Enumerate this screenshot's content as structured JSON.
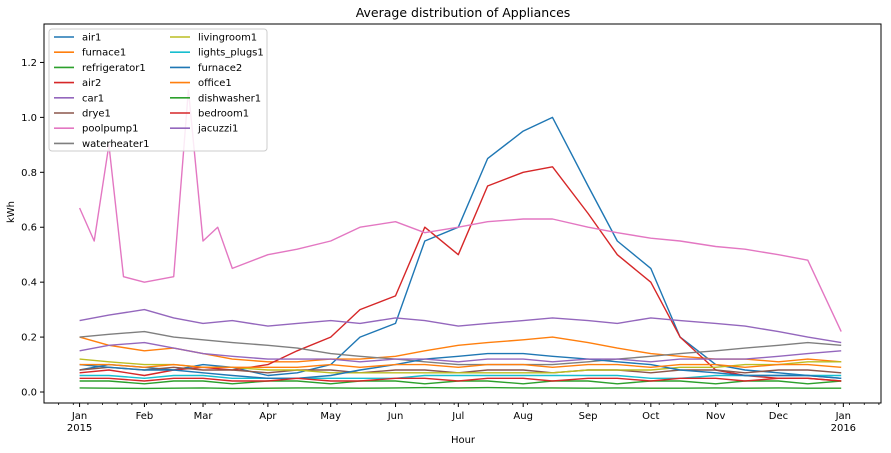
{
  "chart_data": {
    "type": "line",
    "title": "Average distribution of Appliances",
    "xlabel": "Hour",
    "ylabel": "kWh",
    "ylim": [
      -0.04,
      1.34
    ],
    "xlim": [
      "2014-12-15",
      "2016-01-19"
    ],
    "grid": false,
    "legend": "top-left",
    "yticks": [
      "0.0",
      "0.2",
      "0.4",
      "0.6",
      "0.8",
      "1.0",
      "1.2"
    ],
    "xticks": [
      {
        "date": "2015-01-01",
        "label": "Jan",
        "sub": "2015"
      },
      {
        "date": "2015-02-01",
        "label": "Feb",
        "sub": ""
      },
      {
        "date": "2015-03-01",
        "label": "Mar",
        "sub": ""
      },
      {
        "date": "2015-04-01",
        "label": "Apr",
        "sub": ""
      },
      {
        "date": "2015-05-01",
        "label": "May",
        "sub": ""
      },
      {
        "date": "2015-06-01",
        "label": "Jun",
        "sub": ""
      },
      {
        "date": "2015-07-01",
        "label": "Jul",
        "sub": ""
      },
      {
        "date": "2015-08-01",
        "label": "Aug",
        "sub": ""
      },
      {
        "date": "2015-09-01",
        "label": "Sep",
        "sub": ""
      },
      {
        "date": "2015-10-01",
        "label": "Oct",
        "sub": ""
      },
      {
        "date": "2015-11-01",
        "label": "Nov",
        "sub": ""
      },
      {
        "date": "2015-12-01",
        "label": "Dec",
        "sub": ""
      },
      {
        "date": "2016-01-01",
        "label": "Jan",
        "sub": "2016"
      }
    ],
    "series": [
      {
        "name": "air1",
        "color": "#1f77b4",
        "x": [
          "2015-01-01",
          "2015-01-15",
          "2015-02-01",
          "2015-02-15",
          "2015-03-01",
          "2015-03-15",
          "2015-04-01",
          "2015-04-15",
          "2015-05-01",
          "2015-05-15",
          "2015-06-01",
          "2015-06-15",
          "2015-07-01",
          "2015-07-15",
          "2015-08-01",
          "2015-08-15",
          "2015-09-01",
          "2015-09-15",
          "2015-10-01",
          "2015-10-15",
          "2015-11-01",
          "2015-11-15",
          "2015-12-01",
          "2015-12-15",
          "2015-12-31"
        ],
        "values": [
          0.08,
          0.1,
          0.09,
          0.08,
          0.1,
          0.09,
          0.06,
          0.07,
          0.1,
          0.2,
          0.25,
          0.55,
          0.6,
          0.85,
          0.95,
          1.0,
          0.75,
          0.55,
          0.45,
          0.2,
          0.1,
          0.08,
          0.07,
          0.06,
          0.05
        ]
      },
      {
        "name": "furnace1",
        "color": "#ff7f0e",
        "x": [
          "2015-01-01",
          "2015-01-15",
          "2015-02-01",
          "2015-02-15",
          "2015-03-01",
          "2015-03-15",
          "2015-04-01",
          "2015-04-15",
          "2015-05-01",
          "2015-05-15",
          "2015-06-01",
          "2015-06-15",
          "2015-07-01",
          "2015-07-15",
          "2015-08-01",
          "2015-08-15",
          "2015-09-01",
          "2015-09-15",
          "2015-10-01",
          "2015-10-15",
          "2015-11-01",
          "2015-11-15",
          "2015-12-01",
          "2015-12-15",
          "2015-12-31"
        ],
        "values": [
          0.2,
          0.17,
          0.15,
          0.16,
          0.14,
          0.12,
          0.11,
          0.11,
          0.12,
          0.12,
          0.13,
          0.15,
          0.17,
          0.18,
          0.19,
          0.2,
          0.18,
          0.16,
          0.14,
          0.13,
          0.12,
          0.12,
          0.11,
          0.12,
          0.11
        ]
      },
      {
        "name": "refrigerator1",
        "color": "#2ca02c",
        "x": [
          "2015-01-01",
          "2015-01-15",
          "2015-02-01",
          "2015-02-15",
          "2015-03-01",
          "2015-03-15",
          "2015-04-01",
          "2015-04-15",
          "2015-05-01",
          "2015-05-15",
          "2015-06-01",
          "2015-06-15",
          "2015-07-01",
          "2015-07-15",
          "2015-08-01",
          "2015-08-15",
          "2015-09-01",
          "2015-09-15",
          "2015-10-01",
          "2015-10-15",
          "2015-11-01",
          "2015-11-15",
          "2015-12-01",
          "2015-12-15",
          "2015-12-31"
        ],
        "values": [
          0.015,
          0.014,
          0.013,
          0.014,
          0.015,
          0.013,
          0.014,
          0.015,
          0.015,
          0.014,
          0.015,
          0.016,
          0.015,
          0.016,
          0.015,
          0.015,
          0.014,
          0.015,
          0.014,
          0.014,
          0.015,
          0.014,
          0.015,
          0.014,
          0.014
        ]
      },
      {
        "name": "air2",
        "color": "#d62728",
        "x": [
          "2015-01-01",
          "2015-01-15",
          "2015-02-01",
          "2015-02-15",
          "2015-03-01",
          "2015-03-15",
          "2015-04-01",
          "2015-04-15",
          "2015-05-01",
          "2015-05-15",
          "2015-06-01",
          "2015-06-15",
          "2015-07-01",
          "2015-07-15",
          "2015-08-01",
          "2015-08-15",
          "2015-09-01",
          "2015-09-15",
          "2015-10-01",
          "2015-10-15",
          "2015-11-01",
          "2015-11-15",
          "2015-12-01",
          "2015-12-15",
          "2015-12-31"
        ],
        "values": [
          0.07,
          0.08,
          0.06,
          0.08,
          0.09,
          0.08,
          0.1,
          0.15,
          0.2,
          0.3,
          0.35,
          0.6,
          0.5,
          0.75,
          0.8,
          0.82,
          0.65,
          0.5,
          0.4,
          0.2,
          0.08,
          0.06,
          0.05,
          0.05,
          0.04
        ]
      },
      {
        "name": "car1",
        "color": "#9467bd",
        "x": [
          "2015-01-01",
          "2015-01-15",
          "2015-02-01",
          "2015-02-15",
          "2015-03-01",
          "2015-03-15",
          "2015-04-01",
          "2015-04-15",
          "2015-05-01",
          "2015-05-15",
          "2015-06-01",
          "2015-06-15",
          "2015-07-01",
          "2015-07-15",
          "2015-08-01",
          "2015-08-15",
          "2015-09-01",
          "2015-09-15",
          "2015-10-01",
          "2015-10-15",
          "2015-11-01",
          "2015-11-15",
          "2015-12-01",
          "2015-12-15",
          "2015-12-31"
        ],
        "values": [
          0.26,
          0.28,
          0.3,
          0.27,
          0.25,
          0.26,
          0.24,
          0.25,
          0.26,
          0.25,
          0.27,
          0.26,
          0.24,
          0.25,
          0.26,
          0.27,
          0.26,
          0.25,
          0.27,
          0.26,
          0.25,
          0.24,
          0.22,
          0.2,
          0.18
        ]
      },
      {
        "name": "drye1",
        "color": "#8c564b",
        "x": [
          "2015-01-01",
          "2015-01-15",
          "2015-02-01",
          "2015-02-15",
          "2015-03-01",
          "2015-03-15",
          "2015-04-01",
          "2015-04-15",
          "2015-05-01",
          "2015-05-15",
          "2015-06-01",
          "2015-06-15",
          "2015-07-01",
          "2015-07-15",
          "2015-08-01",
          "2015-08-15",
          "2015-09-01",
          "2015-09-15",
          "2015-10-01",
          "2015-10-15",
          "2015-11-01",
          "2015-11-15",
          "2015-12-01",
          "2015-12-15",
          "2015-12-31"
        ],
        "values": [
          0.08,
          0.09,
          0.08,
          0.09,
          0.08,
          0.08,
          0.07,
          0.08,
          0.08,
          0.07,
          0.08,
          0.08,
          0.07,
          0.08,
          0.08,
          0.07,
          0.08,
          0.08,
          0.07,
          0.08,
          0.08,
          0.07,
          0.08,
          0.08,
          0.07
        ]
      },
      {
        "name": "poolpump1",
        "color": "#e377c2",
        "x": [
          "2015-01-01",
          "2015-01-08",
          "2015-01-15",
          "2015-01-22",
          "2015-02-01",
          "2015-02-15",
          "2015-02-22",
          "2015-03-01",
          "2015-03-08",
          "2015-03-15",
          "2015-04-01",
          "2015-04-15",
          "2015-05-01",
          "2015-05-15",
          "2015-06-01",
          "2015-06-15",
          "2015-07-01",
          "2015-07-15",
          "2015-08-01",
          "2015-08-15",
          "2015-09-01",
          "2015-09-15",
          "2015-10-01",
          "2015-10-15",
          "2015-11-01",
          "2015-11-15",
          "2015-12-01",
          "2015-12-15",
          "2015-12-31"
        ],
        "values": [
          0.67,
          0.55,
          0.9,
          0.42,
          0.4,
          0.42,
          1.1,
          0.55,
          0.6,
          0.45,
          0.5,
          0.52,
          0.55,
          0.6,
          0.62,
          0.58,
          0.6,
          0.62,
          0.63,
          0.63,
          0.6,
          0.58,
          0.56,
          0.55,
          0.53,
          0.52,
          0.5,
          0.48,
          0.22
        ]
      },
      {
        "name": "waterheater1",
        "color": "#7f7f7f",
        "x": [
          "2015-01-01",
          "2015-01-15",
          "2015-02-01",
          "2015-02-15",
          "2015-03-01",
          "2015-03-15",
          "2015-04-01",
          "2015-04-15",
          "2015-05-01",
          "2015-05-15",
          "2015-06-01",
          "2015-06-15",
          "2015-07-01",
          "2015-07-15",
          "2015-08-01",
          "2015-08-15",
          "2015-09-01",
          "2015-09-15",
          "2015-10-01",
          "2015-10-15",
          "2015-11-01",
          "2015-11-15",
          "2015-12-01",
          "2015-12-15",
          "2015-12-31"
        ],
        "values": [
          0.2,
          0.21,
          0.22,
          0.2,
          0.19,
          0.18,
          0.17,
          0.16,
          0.14,
          0.13,
          0.12,
          0.11,
          0.1,
          0.1,
          0.1,
          0.1,
          0.11,
          0.12,
          0.13,
          0.14,
          0.15,
          0.16,
          0.17,
          0.18,
          0.17
        ]
      },
      {
        "name": "livingroom1",
        "color": "#bcbd22",
        "x": [
          "2015-01-01",
          "2015-01-15",
          "2015-02-01",
          "2015-02-15",
          "2015-03-01",
          "2015-03-15",
          "2015-04-01",
          "2015-04-15",
          "2015-05-01",
          "2015-05-15",
          "2015-06-01",
          "2015-06-15",
          "2015-07-01",
          "2015-07-15",
          "2015-08-01",
          "2015-08-15",
          "2015-09-01",
          "2015-09-15",
          "2015-10-01",
          "2015-10-15",
          "2015-11-01",
          "2015-11-15",
          "2015-12-01",
          "2015-12-15",
          "2015-12-31"
        ],
        "values": [
          0.12,
          0.11,
          0.1,
          0.1,
          0.09,
          0.09,
          0.08,
          0.08,
          0.07,
          0.07,
          0.07,
          0.07,
          0.07,
          0.07,
          0.07,
          0.07,
          0.08,
          0.08,
          0.08,
          0.09,
          0.09,
          0.1,
          0.1,
          0.11,
          0.11
        ]
      },
      {
        "name": "lights_plugs1",
        "color": "#17becf",
        "x": [
          "2015-01-01",
          "2015-01-15",
          "2015-02-01",
          "2015-02-15",
          "2015-03-01",
          "2015-03-15",
          "2015-04-01",
          "2015-04-15",
          "2015-05-01",
          "2015-05-15",
          "2015-06-01",
          "2015-06-15",
          "2015-07-01",
          "2015-07-15",
          "2015-08-01",
          "2015-08-15",
          "2015-09-01",
          "2015-09-15",
          "2015-10-01",
          "2015-10-15",
          "2015-11-01",
          "2015-11-15",
          "2015-12-01",
          "2015-12-15",
          "2015-12-31"
        ],
        "values": [
          0.06,
          0.06,
          0.05,
          0.06,
          0.06,
          0.05,
          0.05,
          0.05,
          0.05,
          0.05,
          0.05,
          0.06,
          0.06,
          0.06,
          0.06,
          0.06,
          0.06,
          0.06,
          0.05,
          0.05,
          0.06,
          0.06,
          0.06,
          0.06,
          0.06
        ]
      },
      {
        "name": "furnace2",
        "color": "#1f77b4",
        "x": [
          "2015-01-01",
          "2015-01-15",
          "2015-02-01",
          "2015-02-15",
          "2015-03-01",
          "2015-03-15",
          "2015-04-01",
          "2015-04-15",
          "2015-05-01",
          "2015-05-15",
          "2015-06-01",
          "2015-06-15",
          "2015-07-01",
          "2015-07-15",
          "2015-08-01",
          "2015-08-15",
          "2015-09-01",
          "2015-09-15",
          "2015-10-01",
          "2015-10-15",
          "2015-11-01",
          "2015-11-15",
          "2015-12-01",
          "2015-12-15",
          "2015-12-31"
        ],
        "values": [
          0.1,
          0.09,
          0.08,
          0.08,
          0.07,
          0.06,
          0.05,
          0.05,
          0.06,
          0.08,
          0.1,
          0.12,
          0.13,
          0.14,
          0.14,
          0.13,
          0.12,
          0.11,
          0.1,
          0.08,
          0.07,
          0.06,
          0.06,
          0.06,
          0.05
        ]
      },
      {
        "name": "office1",
        "color": "#ff7f0e",
        "x": [
          "2015-01-01",
          "2015-01-15",
          "2015-02-01",
          "2015-02-15",
          "2015-03-01",
          "2015-03-15",
          "2015-04-01",
          "2015-04-15",
          "2015-05-01",
          "2015-05-15",
          "2015-06-01",
          "2015-06-15",
          "2015-07-01",
          "2015-07-15",
          "2015-08-01",
          "2015-08-15",
          "2015-09-01",
          "2015-09-15",
          "2015-10-01",
          "2015-10-15",
          "2015-11-01",
          "2015-11-15",
          "2015-12-01",
          "2015-12-15",
          "2015-12-31"
        ],
        "values": [
          0.1,
          0.1,
          0.09,
          0.1,
          0.09,
          0.09,
          0.09,
          0.09,
          0.1,
          0.09,
          0.1,
          0.1,
          0.09,
          0.1,
          0.1,
          0.09,
          0.1,
          0.1,
          0.09,
          0.1,
          0.1,
          0.09,
          0.1,
          0.1,
          0.09
        ]
      },
      {
        "name": "dishwasher1",
        "color": "#2ca02c",
        "x": [
          "2015-01-01",
          "2015-01-15",
          "2015-02-01",
          "2015-02-15",
          "2015-03-01",
          "2015-03-15",
          "2015-04-01",
          "2015-04-15",
          "2015-05-01",
          "2015-05-15",
          "2015-06-01",
          "2015-06-15",
          "2015-07-01",
          "2015-07-15",
          "2015-08-01",
          "2015-08-15",
          "2015-09-01",
          "2015-09-15",
          "2015-10-01",
          "2015-10-15",
          "2015-11-01",
          "2015-11-15",
          "2015-12-01",
          "2015-12-15",
          "2015-12-31"
        ],
        "values": [
          0.04,
          0.04,
          0.03,
          0.04,
          0.04,
          0.03,
          0.04,
          0.04,
          0.03,
          0.04,
          0.04,
          0.03,
          0.04,
          0.04,
          0.03,
          0.04,
          0.04,
          0.03,
          0.04,
          0.04,
          0.03,
          0.04,
          0.04,
          0.03,
          0.04
        ]
      },
      {
        "name": "bedroom1",
        "color": "#d62728",
        "x": [
          "2015-01-01",
          "2015-01-15",
          "2015-02-01",
          "2015-02-15",
          "2015-03-01",
          "2015-03-15",
          "2015-04-01",
          "2015-04-15",
          "2015-05-01",
          "2015-05-15",
          "2015-06-01",
          "2015-06-15",
          "2015-07-01",
          "2015-07-15",
          "2015-08-01",
          "2015-08-15",
          "2015-09-01",
          "2015-09-15",
          "2015-10-01",
          "2015-10-15",
          "2015-11-01",
          "2015-11-15",
          "2015-12-01",
          "2015-12-15",
          "2015-12-31"
        ],
        "values": [
          0.05,
          0.05,
          0.04,
          0.05,
          0.05,
          0.04,
          0.04,
          0.05,
          0.04,
          0.04,
          0.05,
          0.05,
          0.04,
          0.05,
          0.05,
          0.04,
          0.05,
          0.05,
          0.04,
          0.05,
          0.05,
          0.04,
          0.05,
          0.05,
          0.04
        ]
      },
      {
        "name": "jacuzzi1",
        "color": "#9467bd",
        "x": [
          "2015-01-01",
          "2015-01-15",
          "2015-02-01",
          "2015-02-15",
          "2015-03-01",
          "2015-03-15",
          "2015-04-01",
          "2015-04-15",
          "2015-05-01",
          "2015-05-15",
          "2015-06-01",
          "2015-06-15",
          "2015-07-01",
          "2015-07-15",
          "2015-08-01",
          "2015-08-15",
          "2015-09-01",
          "2015-09-15",
          "2015-10-01",
          "2015-10-15",
          "2015-11-01",
          "2015-11-15",
          "2015-12-01",
          "2015-12-15",
          "2015-12-31"
        ],
        "values": [
          0.15,
          0.17,
          0.18,
          0.16,
          0.14,
          0.13,
          0.12,
          0.12,
          0.12,
          0.11,
          0.12,
          0.12,
          0.11,
          0.12,
          0.12,
          0.11,
          0.12,
          0.12,
          0.11,
          0.12,
          0.12,
          0.12,
          0.13,
          0.14,
          0.15
        ]
      }
    ]
  }
}
